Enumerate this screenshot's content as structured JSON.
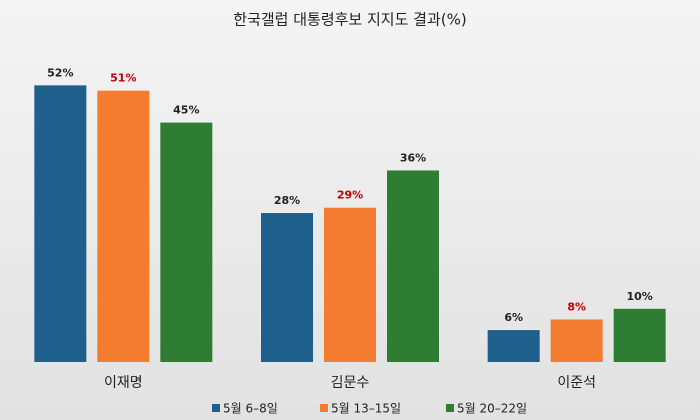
{
  "chart_data": {
    "type": "bar",
    "title": "한국갤럽 대통령후보 지지도 결과(%)",
    "categories": [
      "이재명",
      "김문수",
      "이준석"
    ],
    "series": [
      {
        "name": "5월 6–8일",
        "color": "#1f5f8b",
        "label_color": "#222222",
        "values": [
          52,
          28,
          6
        ],
        "value_labels": [
          "52%",
          "28%",
          "6%"
        ]
      },
      {
        "name": "5월 13–15일",
        "color": "#f47c30",
        "label_color": "#c00000",
        "values": [
          51,
          29,
          8
        ],
        "value_labels": [
          "51%",
          "29%",
          "8%"
        ]
      },
      {
        "name": "5월 20–22일",
        "color": "#2e7d32",
        "label_color": "#222222",
        "values": [
          45,
          36,
          10
        ],
        "value_labels": [
          "45%",
          "36%",
          "10%"
        ]
      }
    ],
    "legend": "bottom"
  }
}
